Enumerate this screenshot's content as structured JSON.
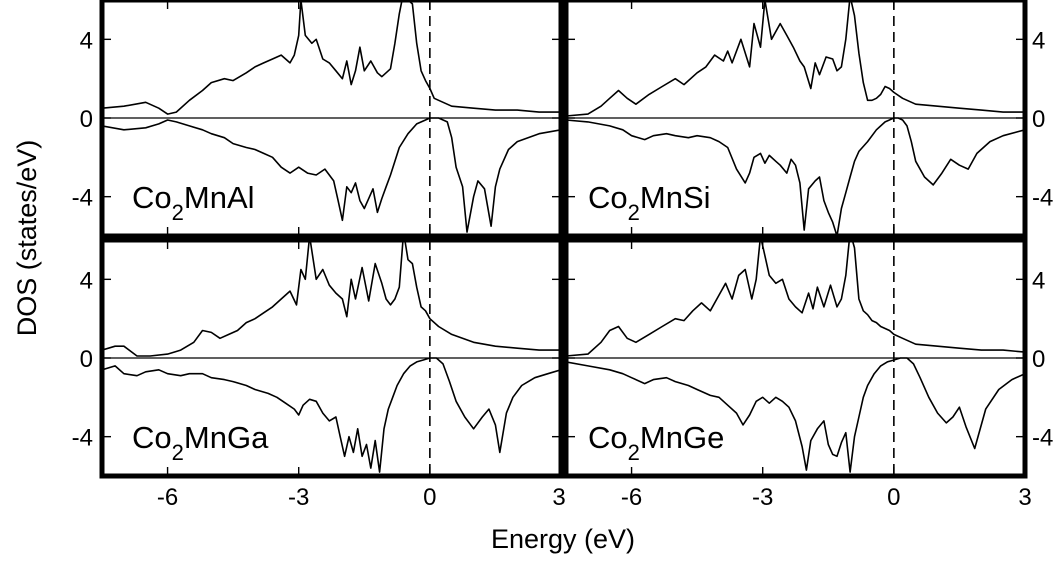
{
  "chart_data": {
    "type": "line",
    "xlabel": "Energy (eV)",
    "ylabel": "DOS (states/eV)",
    "xlim": [
      -7.5,
      3
    ],
    "ylim": [
      -6,
      6
    ],
    "x_ticks": [
      -6,
      -3,
      0,
      3
    ],
    "y_ticks": [
      -4,
      0,
      4
    ],
    "x_tick_labels": [
      "-6",
      "-3",
      "0",
      "3"
    ],
    "y_tick_labels": [
      "-4",
      "0",
      "4"
    ],
    "fermi_level": 0,
    "panels": [
      {
        "label": {
          "base": "Co",
          "sub": "2",
          "rest": "MnAl"
        },
        "series": [
          {
            "x": [
              -7.5,
              -7.0,
              -6.5,
              -6.2,
              -6.0,
              -5.8,
              -5.5,
              -5.2,
              -5.0,
              -4.7,
              -4.5,
              -4.2,
              -4.0,
              -3.8,
              -3.6,
              -3.4,
              -3.2,
              -3.1,
              -3.0,
              -2.95,
              -2.85,
              -2.7,
              -2.6,
              -2.45,
              -2.3,
              -2.15,
              -2.0,
              -1.9,
              -1.8,
              -1.7,
              -1.6,
              -1.5,
              -1.35,
              -1.2,
              -1.1,
              -1.0,
              -0.9,
              -0.8,
              -0.7,
              -0.6,
              -0.5,
              -0.4,
              -0.3,
              -0.2,
              -0.1,
              0.0,
              0.1,
              0.2,
              0.5,
              1.0,
              1.5,
              2.0,
              2.5,
              3.0
            ],
            "y": [
              0.5,
              0.6,
              0.8,
              0.5,
              0.2,
              0.3,
              0.9,
              1.4,
              1.8,
              2.0,
              1.9,
              2.3,
              2.6,
              2.8,
              3.0,
              3.2,
              2.8,
              3.2,
              4.2,
              6.0,
              4.2,
              3.8,
              4.0,
              3.0,
              2.8,
              2.4,
              2.0,
              2.9,
              1.7,
              2.4,
              3.6,
              2.4,
              2.9,
              2.3,
              2.1,
              2.3,
              2.5,
              3.8,
              5.3,
              6.4,
              6.0,
              5.8,
              3.8,
              2.4,
              1.9,
              1.5,
              1.0,
              0.9,
              0.6,
              0.5,
              0.4,
              0.4,
              0.3,
              0.3
            ]
          },
          {
            "x": [
              -7.5,
              -7.0,
              -6.5,
              -6.2,
              -6.0,
              -5.8,
              -5.5,
              -5.2,
              -5.0,
              -4.7,
              -4.5,
              -4.2,
              -4.0,
              -3.8,
              -3.6,
              -3.4,
              -3.2,
              -3.0,
              -2.8,
              -2.6,
              -2.4,
              -2.2,
              -2.1,
              -2.0,
              -1.9,
              -1.8,
              -1.7,
              -1.6,
              -1.5,
              -1.4,
              -1.3,
              -1.2,
              -1.1,
              -1.0,
              -0.9,
              -0.8,
              -0.7,
              -0.5,
              -0.3,
              -0.1,
              0.0,
              0.2,
              0.4,
              0.5,
              0.6,
              0.75,
              0.85,
              1.0,
              1.1,
              1.25,
              1.4,
              1.5,
              1.6,
              1.8,
              2.0,
              2.5,
              3.0
            ],
            "y": [
              -0.4,
              -0.6,
              -0.5,
              -0.3,
              -0.1,
              -0.2,
              -0.4,
              -0.6,
              -0.8,
              -1.0,
              -1.3,
              -1.5,
              -1.6,
              -1.8,
              -2.0,
              -2.5,
              -2.8,
              -2.5,
              -2.8,
              -2.9,
              -2.6,
              -3.2,
              -4.2,
              -5.2,
              -3.5,
              -3.8,
              -3.3,
              -4.2,
              -4.6,
              -4.1,
              -3.6,
              -4.8,
              -4.1,
              -3.5,
              -2.9,
              -2.2,
              -1.5,
              -0.8,
              -0.3,
              -0.1,
              0.0,
              0.0,
              -0.2,
              -1.0,
              -2.5,
              -3.5,
              -5.8,
              -4.0,
              -3.2,
              -3.6,
              -5.5,
              -3.5,
              -2.6,
              -1.6,
              -1.2,
              -0.8,
              -0.6
            ]
          }
        ]
      },
      {
        "label": {
          "base": "Co",
          "sub": "2",
          "rest": "MnSi"
        },
        "series": [
          {
            "x": [
              -7.5,
              -7.0,
              -6.7,
              -6.5,
              -6.3,
              -6.1,
              -5.9,
              -5.6,
              -5.3,
              -5.0,
              -4.8,
              -4.5,
              -4.3,
              -4.1,
              -3.9,
              -3.8,
              -3.7,
              -3.5,
              -3.3,
              -3.2,
              -3.05,
              -2.95,
              -2.8,
              -2.6,
              -2.45,
              -2.3,
              -2.15,
              -2.05,
              -1.9,
              -1.8,
              -1.7,
              -1.55,
              -1.4,
              -1.3,
              -1.2,
              -1.1,
              -1.0,
              -0.9,
              -0.8,
              -0.7,
              -0.6,
              -0.5,
              -0.4,
              -0.3,
              -0.2,
              -0.1,
              0.0,
              0.2,
              0.5,
              1.0,
              1.5,
              2.0,
              2.5,
              3.0
            ],
            "y": [
              0.1,
              0.2,
              0.6,
              1.0,
              1.4,
              1.0,
              0.7,
              1.2,
              1.6,
              2.0,
              1.7,
              2.3,
              2.6,
              3.2,
              2.9,
              3.4,
              2.8,
              4.0,
              2.6,
              4.8,
              3.6,
              6.0,
              4.0,
              4.8,
              4.2,
              3.6,
              2.9,
              2.6,
              1.5,
              2.8,
              2.2,
              3.1,
              3.0,
              2.4,
              2.6,
              4.0,
              6.2,
              5.2,
              3.3,
              1.8,
              0.9,
              0.9,
              1.0,
              1.2,
              1.6,
              1.5,
              1.3,
              1.0,
              0.7,
              0.6,
              0.5,
              0.4,
              0.3,
              0.3
            ]
          },
          {
            "x": [
              -7.5,
              -7.0,
              -6.5,
              -6.2,
              -6.0,
              -5.7,
              -5.5,
              -5.2,
              -5.0,
              -4.7,
              -4.5,
              -4.2,
              -4.0,
              -3.8,
              -3.6,
              -3.4,
              -3.3,
              -3.2,
              -3.05,
              -2.95,
              -2.85,
              -2.7,
              -2.6,
              -2.45,
              -2.35,
              -2.25,
              -2.15,
              -2.05,
              -1.95,
              -1.8,
              -1.7,
              -1.6,
              -1.5,
              -1.4,
              -1.3,
              -1.2,
              -1.1,
              -1.0,
              -0.9,
              -0.8,
              -0.6,
              -0.4,
              -0.2,
              0.0,
              0.1,
              0.2,
              0.3,
              0.4,
              0.5,
              0.7,
              0.9,
              1.1,
              1.3,
              1.5,
              1.7,
              1.9,
              2.2,
              2.5,
              3.0
            ],
            "y": [
              -0.1,
              -0.2,
              -0.4,
              -0.6,
              -0.9,
              -1.1,
              -0.9,
              -0.8,
              -0.9,
              -1.0,
              -0.9,
              -1.0,
              -1.2,
              -1.5,
              -2.6,
              -3.3,
              -2.8,
              -2.0,
              -1.8,
              -2.3,
              -1.9,
              -2.2,
              -2.4,
              -2.8,
              -2.1,
              -2.4,
              -3.3,
              -5.7,
              -3.6,
              -3.2,
              -3.0,
              -4.2,
              -4.8,
              -5.3,
              -6.0,
              -4.6,
              -3.8,
              -3.0,
              -2.2,
              -1.7,
              -1.2,
              -0.6,
              -0.2,
              0.0,
              0.0,
              -0.1,
              -0.4,
              -1.2,
              -2.2,
              -3.0,
              -3.4,
              -2.8,
              -2.1,
              -2.4,
              -2.6,
              -1.8,
              -1.2,
              -0.9,
              -0.6
            ]
          }
        ]
      },
      {
        "label": {
          "base": "Co",
          "sub": "2",
          "rest": "MnGa"
        },
        "series": [
          {
            "x": [
              -7.5,
              -7.2,
              -7.0,
              -6.7,
              -6.4,
              -6.0,
              -5.7,
              -5.4,
              -5.2,
              -5.0,
              -4.8,
              -4.6,
              -4.4,
              -4.2,
              -4.0,
              -3.8,
              -3.6,
              -3.4,
              -3.2,
              -3.05,
              -2.95,
              -2.85,
              -2.75,
              -2.6,
              -2.45,
              -2.3,
              -2.15,
              -2.0,
              -1.9,
              -1.8,
              -1.7,
              -1.55,
              -1.4,
              -1.25,
              -1.1,
              -1.0,
              -0.9,
              -0.8,
              -0.7,
              -0.6,
              -0.5,
              -0.4,
              -0.3,
              -0.2,
              -0.1,
              0.0,
              0.2,
              0.5,
              1.0,
              1.5,
              2.0,
              2.5,
              3.0
            ],
            "y": [
              0.4,
              0.6,
              0.6,
              0.1,
              0.1,
              0.2,
              0.4,
              0.8,
              1.4,
              1.3,
              1.0,
              1.2,
              1.4,
              1.8,
              2.0,
              2.3,
              2.6,
              3.0,
              3.4,
              2.7,
              4.5,
              4.0,
              6.2,
              4.0,
              4.5,
              3.7,
              3.3,
              3.0,
              2.1,
              4.0,
              3.0,
              4.6,
              2.9,
              4.8,
              3.8,
              3.0,
              2.7,
              3.0,
              3.6,
              6.4,
              5.0,
              4.8,
              3.6,
              2.6,
              2.4,
              2.0,
              1.6,
              1.2,
              0.8,
              0.6,
              0.5,
              0.4,
              0.4
            ]
          },
          {
            "x": [
              -7.5,
              -7.2,
              -7.0,
              -6.7,
              -6.5,
              -6.2,
              -6.0,
              -5.7,
              -5.5,
              -5.2,
              -5.0,
              -4.7,
              -4.5,
              -4.2,
              -4.0,
              -3.7,
              -3.5,
              -3.3,
              -3.1,
              -3.0,
              -2.9,
              -2.75,
              -2.6,
              -2.45,
              -2.3,
              -2.15,
              -2.05,
              -1.95,
              -1.85,
              -1.75,
              -1.65,
              -1.55,
              -1.45,
              -1.35,
              -1.25,
              -1.15,
              -1.05,
              -0.95,
              -0.85,
              -0.75,
              -0.6,
              -0.45,
              -0.3,
              -0.15,
              0.0,
              0.15,
              0.3,
              0.45,
              0.6,
              0.8,
              1.0,
              1.2,
              1.35,
              1.5,
              1.6,
              1.75,
              1.9,
              2.1,
              2.4,
              2.7,
              3.0
            ],
            "y": [
              -0.6,
              -0.4,
              -0.8,
              -0.9,
              -0.7,
              -0.6,
              -0.8,
              -0.9,
              -0.8,
              -0.8,
              -1.0,
              -1.1,
              -1.2,
              -1.4,
              -1.6,
              -1.8,
              -2.0,
              -2.3,
              -2.6,
              -2.9,
              -2.4,
              -2.1,
              -2.2,
              -2.8,
              -3.2,
              -3.0,
              -4.0,
              -5.0,
              -4.0,
              -4.8,
              -3.6,
              -5.0,
              -4.4,
              -5.6,
              -4.2,
              -5.8,
              -3.6,
              -2.6,
              -2.0,
              -1.4,
              -0.8,
              -0.4,
              -0.2,
              -0.1,
              0.0,
              0.0,
              -0.3,
              -1.2,
              -2.2,
              -3.0,
              -3.6,
              -3.0,
              -2.6,
              -3.4,
              -4.8,
              -2.8,
              -2.0,
              -1.4,
              -1.0,
              -0.8,
              -0.6
            ]
          }
        ]
      },
      {
        "label": {
          "base": "Co",
          "sub": "2",
          "rest": "MnGe"
        },
        "series": [
          {
            "x": [
              -7.5,
              -7.0,
              -6.7,
              -6.5,
              -6.3,
              -6.1,
              -5.9,
              -5.6,
              -5.3,
              -5.0,
              -4.8,
              -4.6,
              -4.4,
              -4.2,
              -4.0,
              -3.85,
              -3.7,
              -3.55,
              -3.4,
              -3.25,
              -3.15,
              -3.05,
              -2.95,
              -2.85,
              -2.7,
              -2.55,
              -2.4,
              -2.25,
              -2.1,
              -1.95,
              -1.85,
              -1.75,
              -1.6,
              -1.45,
              -1.3,
              -1.2,
              -1.1,
              -1.0,
              -0.9,
              -0.8,
              -0.7,
              -0.6,
              -0.5,
              -0.4,
              -0.3,
              -0.2,
              -0.1,
              0.0,
              0.2,
              0.5,
              1.0,
              1.5,
              2.0,
              2.5,
              3.0
            ],
            "y": [
              0.1,
              0.2,
              0.8,
              1.4,
              1.6,
              1.0,
              0.8,
              1.2,
              1.6,
              2.0,
              1.9,
              2.4,
              2.8,
              2.4,
              3.2,
              3.8,
              3.0,
              4.2,
              4.5,
              3.0,
              4.0,
              6.2,
              5.2,
              4.2,
              3.8,
              4.0,
              3.0,
              2.6,
              2.3,
              3.3,
              2.5,
              3.6,
              2.6,
              3.7,
              2.6,
              3.0,
              4.2,
              6.4,
              5.6,
              3.0,
              2.4,
              2.2,
              1.9,
              1.8,
              1.6,
              1.5,
              1.4,
              1.2,
              1.0,
              0.7,
              0.6,
              0.5,
              0.4,
              0.4,
              0.3
            ]
          },
          {
            "x": [
              -7.5,
              -7.0,
              -6.5,
              -6.2,
              -6.0,
              -5.7,
              -5.5,
              -5.2,
              -5.0,
              -4.7,
              -4.5,
              -4.2,
              -4.0,
              -3.8,
              -3.6,
              -3.45,
              -3.3,
              -3.15,
              -3.0,
              -2.85,
              -2.7,
              -2.55,
              -2.4,
              -2.25,
              -2.1,
              -2.0,
              -1.9,
              -1.75,
              -1.6,
              -1.5,
              -1.4,
              -1.3,
              -1.2,
              -1.1,
              -1.0,
              -0.9,
              -0.8,
              -0.7,
              -0.6,
              -0.45,
              -0.3,
              -0.15,
              0.0,
              0.15,
              0.3,
              0.45,
              0.6,
              0.8,
              1.0,
              1.2,
              1.35,
              1.5,
              1.65,
              1.85,
              2.1,
              2.4,
              2.7,
              3.0
            ],
            "y": [
              -0.2,
              -0.4,
              -0.6,
              -0.8,
              -1.0,
              -1.3,
              -1.1,
              -1.0,
              -1.2,
              -1.4,
              -1.6,
              -1.9,
              -2.0,
              -2.4,
              -2.8,
              -3.4,
              -2.9,
              -2.2,
              -2.0,
              -2.3,
              -2.0,
              -2.2,
              -2.5,
              -3.2,
              -4.5,
              -5.7,
              -4.2,
              -3.6,
              -3.2,
              -4.4,
              -4.9,
              -5.0,
              -4.3,
              -3.8,
              -5.8,
              -4.0,
              -3.0,
              -2.0,
              -1.4,
              -0.8,
              -0.4,
              -0.2,
              -0.1,
              0.0,
              0.0,
              -0.3,
              -1.0,
              -2.0,
              -2.8,
              -3.3,
              -3.0,
              -2.5,
              -3.5,
              -4.6,
              -2.6,
              -1.6,
              -1.1,
              -0.8
            ]
          }
        ]
      }
    ]
  }
}
